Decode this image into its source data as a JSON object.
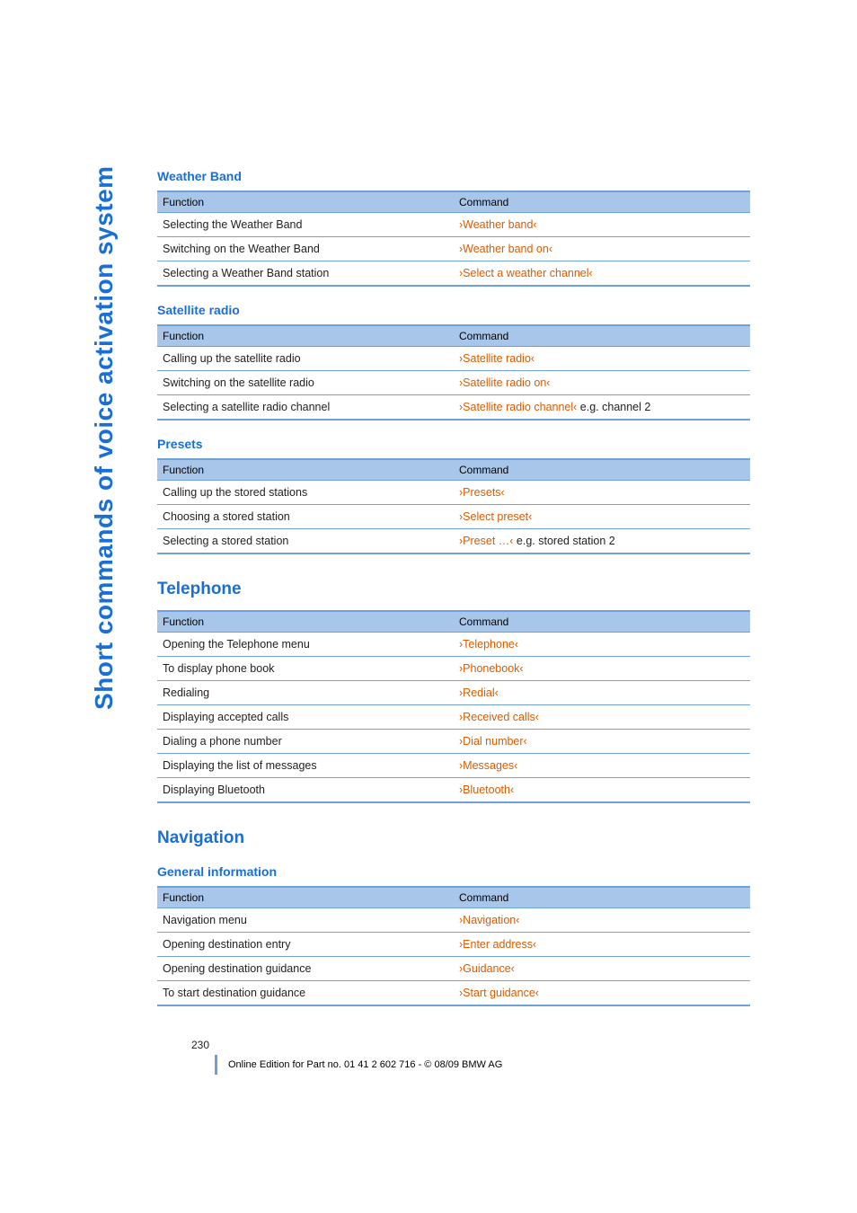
{
  "sideLabel": "Short commands of voice activation system",
  "sections": [
    {
      "type": "sub",
      "title": "Weather Band",
      "headers": [
        "Function",
        "Command"
      ],
      "rows": [
        [
          "Selecting the Weather Band",
          "›Weather band‹"
        ],
        [
          "Switching on the Weather Band",
          "›Weather band on‹"
        ],
        [
          "Selecting a Weather Band station",
          "›Select a weather channel‹"
        ]
      ]
    },
    {
      "type": "sub",
      "title": "Satellite radio",
      "headers": [
        "Function",
        "Command"
      ],
      "rows": [
        [
          "Calling up the satellite radio",
          "›Satellite radio‹"
        ],
        [
          "Switching on the satellite radio",
          "›Satellite radio on‹"
        ],
        [
          "Selecting a satellite radio channel",
          "›Satellite radio channel‹ e.g. channel 2"
        ]
      ]
    },
    {
      "type": "sub",
      "title": "Presets",
      "headers": [
        "Function",
        "Command"
      ],
      "rows": [
        [
          "Calling up the stored stations",
          "›Presets‹"
        ],
        [
          "Choosing a stored station",
          "›Select preset‹"
        ],
        [
          "Selecting a stored station",
          "›Preset …‹ e.g. stored station 2"
        ]
      ]
    },
    {
      "type": "section",
      "title": "Telephone",
      "headers": [
        "Function",
        "Command"
      ],
      "rows": [
        [
          "Opening the Telephone menu",
          "›Telephone‹"
        ],
        [
          "To display phone book",
          "›Phonebook‹"
        ],
        [
          "Redialing",
          "›Redial‹"
        ],
        [
          "Displaying accepted calls",
          "›Received calls‹"
        ],
        [
          "Dialing a phone number",
          "›Dial number‹"
        ],
        [
          "Displaying the list of messages",
          "›Messages‹"
        ],
        [
          "Displaying Bluetooth",
          "›Bluetooth‹"
        ]
      ]
    },
    {
      "type": "section",
      "title": "Navigation",
      "subTitle": "General information",
      "headers": [
        "Function",
        "Command"
      ],
      "rows": [
        [
          "Navigation menu",
          "›Navigation‹"
        ],
        [
          "Opening destination entry",
          "›Enter address‹"
        ],
        [
          "Opening destination guidance",
          "›Guidance‹"
        ],
        [
          "To start destination guidance",
          "›Start guidance‹"
        ]
      ]
    }
  ],
  "pageNumber": "230",
  "footer": "Online Edition for Part no. 01 41 2 602 716 - © 08/09 BMW AG"
}
